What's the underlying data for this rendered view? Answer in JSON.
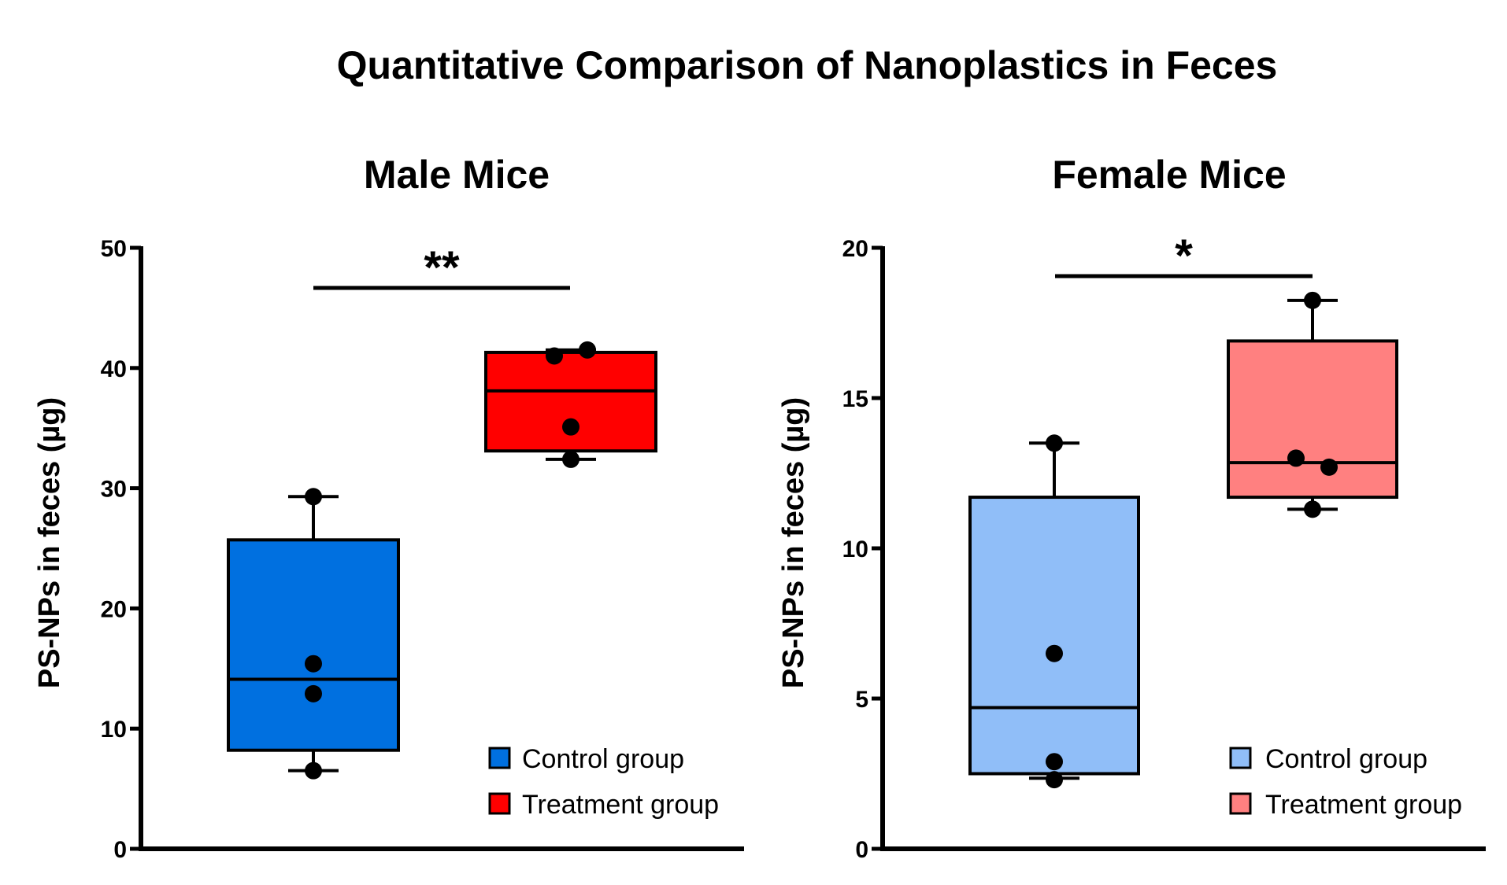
{
  "chart_data": {
    "title": "Quantitative Comparison of Nanoplastics in Feces",
    "panels": [
      {
        "type": "box",
        "title": "Male Mice",
        "ylabel": "PS-NPs in feces (µg)",
        "xlabel": "",
        "ylim": [
          0,
          50
        ],
        "yticks": [
          0,
          10,
          20,
          30,
          40,
          50
        ],
        "grid": false,
        "legend_position": "bottom-right",
        "significance": "**",
        "groups": [
          {
            "name": "Control group",
            "color": "#0070E0",
            "min": 6.5,
            "q1": 8.2,
            "median": 14.1,
            "q3": 25.7,
            "max": 29.3,
            "points": [
              29.3,
              15.4,
              12.9,
              6.5
            ],
            "point_offsets": [
              0,
              0,
              0,
              0
            ]
          },
          {
            "name": "Treatment group",
            "color": "#FF0000",
            "min": 32.4,
            "q1": 33.1,
            "median": 38.1,
            "q3": 41.3,
            "max": 41.5,
            "points": [
              41.0,
              41.5,
              35.1,
              32.4
            ],
            "point_offsets": [
              -0.1,
              0.1,
              0,
              0
            ]
          }
        ]
      },
      {
        "type": "box",
        "title": "Female Mice",
        "ylabel": "PS-NPs in feces (µg)",
        "xlabel": "",
        "ylim": [
          0,
          20
        ],
        "yticks": [
          0,
          5,
          10,
          15,
          20
        ],
        "grid": false,
        "legend_position": "bottom-right",
        "significance": "*",
        "groups": [
          {
            "name": "Control group",
            "color": "#90BEF8",
            "min": 2.35,
            "q1": 2.5,
            "median": 4.7,
            "q3": 11.7,
            "max": 13.5,
            "points": [
              13.5,
              6.5,
              2.9,
              2.3
            ],
            "point_offsets": [
              0,
              0,
              0,
              0
            ]
          },
          {
            "name": "Treatment group",
            "color": "#FF8080",
            "min": 11.3,
            "q1": 11.7,
            "median": 12.85,
            "q3": 16.9,
            "max": 18.25,
            "points": [
              18.25,
              13.0,
              12.7,
              11.3
            ],
            "point_offsets": [
              0,
              -0.1,
              0.1,
              0
            ]
          }
        ]
      }
    ]
  }
}
